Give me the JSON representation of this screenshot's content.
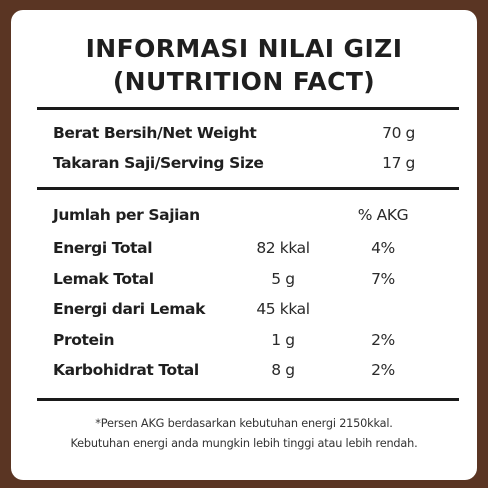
{
  "header": {
    "title_line1": "INFORMASI NILAI GIZI",
    "title_line2": "(NUTRITION FACT)"
  },
  "serving": {
    "net_weight_label": "Berat Bersih/Net Weight",
    "net_weight_value": "70 g",
    "serving_size_label": "Takaran Saji/Serving Size",
    "serving_size_value": "17 g"
  },
  "nutrients": {
    "header_label": "Jumlah per Sajian",
    "header_pct": "% AKG",
    "rows": [
      {
        "name": "Energi Total",
        "amount": "82 kkal",
        "akg": "4%"
      },
      {
        "name": "Lemak Total",
        "amount": "5 g",
        "akg": "7%"
      },
      {
        "name": "Energi dari Lemak",
        "amount": "45 kkal",
        "akg": ""
      },
      {
        "name": "Protein",
        "amount": "1 g",
        "akg": "2%"
      },
      {
        "name": "Karbohidrat Total",
        "amount": "8 g",
        "akg": "2%"
      }
    ]
  },
  "footnote": {
    "line1": "*Persen AKG berdasarkan kebutuhan energi 2150kkal.",
    "line2": "Kebutuhan energi anda mungkin lebih tinggi atau lebih rendah."
  },
  "colors": {
    "frame": "#5a3523",
    "card": "#ffffff",
    "text": "#1f1f1f"
  }
}
